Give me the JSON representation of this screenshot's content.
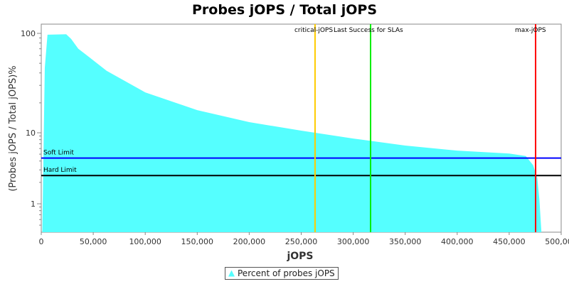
{
  "chart_data": {
    "type": "area",
    "title": "Probes jOPS / Total jOPS",
    "xlabel": "jOPS",
    "ylabel": "(Probes jOPS / Total jOPS)%",
    "xlim": [
      0,
      500000
    ],
    "ylim": [
      0.4,
      124
    ],
    "y_scale": "log",
    "grid": false,
    "legend_position": "bottom",
    "x_ticks": [
      "0",
      "50,000",
      "100,000",
      "150,000",
      "200,000",
      "250,000",
      "300,000",
      "350,000",
      "400,000",
      "450,000",
      "500,000"
    ],
    "y_ticks": [
      "1",
      "10",
      "100"
    ],
    "series": [
      {
        "name": "Percent of probes jOPS",
        "color": "#55ffff",
        "x": [
          1000,
          3400,
          6000,
          24000,
          28700,
          35600,
          45800,
          62900,
          100000,
          150000,
          200000,
          250000,
          300000,
          350000,
          400000,
          450000,
          466000,
          473000,
          477000,
          479000,
          481000
        ],
        "y": [
          0.4,
          45,
          97,
          98,
          88,
          70,
          58,
          42,
          25.5,
          16.9,
          12.8,
          10.5,
          8.3,
          6.6,
          5.6,
          5.1,
          4.7,
          3.5,
          2.3,
          1.17,
          0.4
        ]
      }
    ],
    "horizontal_lines": [
      {
        "label": "Soft Limit",
        "value": 4.4,
        "color": "#0000ff"
      },
      {
        "label": "Hard Limit",
        "value": 2.5,
        "color": "#000000"
      }
    ],
    "vertical_lines": [
      {
        "label": "critical-jOPS",
        "value": 263300,
        "color": "#ffcc00"
      },
      {
        "label": "Last Success for SLAs",
        "value": 316700,
        "color": "#00ee00"
      },
      {
        "label": "max-jOPS",
        "value": 475400,
        "color": "#ff0000"
      }
    ]
  }
}
